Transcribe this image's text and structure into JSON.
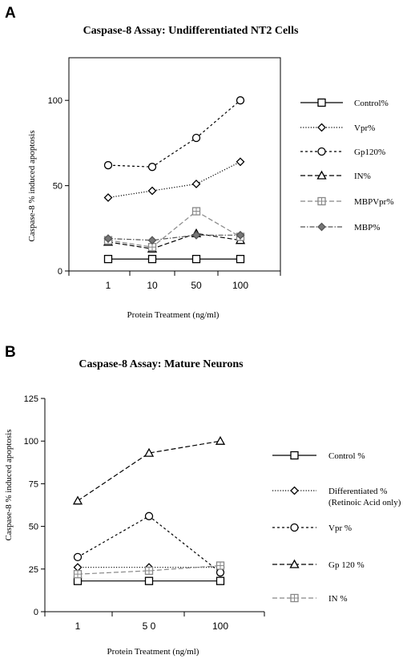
{
  "panels": [
    {
      "letter": "A"
    },
    {
      "letter": "B"
    }
  ],
  "chart_data": [
    {
      "type": "line",
      "title": "Caspase-8 Assay: Undifferentiated NT2 Cells",
      "xlabel": "Protein Treatment (ng/ml)",
      "ylabel": "Caspase-8 % induced apoptosis",
      "categories": [
        "1",
        "10",
        "50",
        "100"
      ],
      "ylim": [
        0,
        125
      ],
      "yticks": [
        "0",
        "50",
        "100"
      ],
      "ytick_values": [
        0,
        50,
        100
      ],
      "grid": false,
      "legend_position": "right",
      "series": [
        {
          "name": "Control%",
          "values": [
            7,
            7,
            7,
            7
          ],
          "marker": "square",
          "dash": "solid",
          "color": "#000000",
          "fill": "#ffffff"
        },
        {
          "name": "Vpr%",
          "values": [
            43,
            47,
            51,
            64
          ],
          "marker": "diamond",
          "dash": "dotted",
          "color": "#000000",
          "fill": "#ffffff"
        },
        {
          "name": "Gp120%",
          "values": [
            62,
            61,
            78,
            100
          ],
          "marker": "circle",
          "dash": "short-dash",
          "color": "#000000",
          "fill": "#ffffff"
        },
        {
          "name": "IN%",
          "values": [
            17,
            13,
            22,
            18
          ],
          "marker": "triangle",
          "dash": "long-dash",
          "color": "#000000",
          "fill": "#ffffff"
        },
        {
          "name": "MBPVpr%",
          "values": [
            18,
            14,
            35,
            20
          ],
          "marker": "square-plus",
          "dash": "long-dash",
          "color": "#888888",
          "fill": "#ffffff"
        },
        {
          "name": "MBP%",
          "values": [
            19,
            18,
            21,
            21
          ],
          "marker": "diamond-filled",
          "dash": "dash-dot",
          "color": "#555555",
          "fill": "#777777"
        }
      ]
    },
    {
      "type": "line",
      "title": "Caspase-8 Assay: Mature Neurons",
      "xlabel": "Protein Treatment (ng/ml)",
      "ylabel": "Caspase-8 % induced apoptosis",
      "categories": [
        "1",
        "5 0",
        "100"
      ],
      "ylim": [
        0,
        125
      ],
      "yticks": [
        "0",
        "25",
        "50",
        "75",
        "100",
        "125"
      ],
      "ytick_values": [
        0,
        25,
        50,
        75,
        100,
        125
      ],
      "grid": false,
      "legend_position": "right",
      "series": [
        {
          "name": "Control %",
          "values": [
            18,
            18,
            18
          ],
          "marker": "square",
          "dash": "solid",
          "color": "#000000",
          "fill": "#ffffff"
        },
        {
          "name": "Differentiated %",
          "subname": "(Retinoic Acid only)",
          "values": [
            26,
            26,
            26
          ],
          "marker": "diamond",
          "dash": "dotted",
          "color": "#000000",
          "fill": "#ffffff"
        },
        {
          "name": "Vpr %",
          "values": [
            32,
            56,
            23
          ],
          "marker": "circle",
          "dash": "short-dash",
          "color": "#000000",
          "fill": "#ffffff"
        },
        {
          "name": "Gp 120 %",
          "values": [
            65,
            93,
            100
          ],
          "marker": "triangle",
          "dash": "long-dash",
          "color": "#000000",
          "fill": "#ffffff"
        },
        {
          "name": "IN %",
          "values": [
            22,
            24,
            27
          ],
          "marker": "square-plus",
          "dash": "long-dash",
          "color": "#888888",
          "fill": "#ffffff"
        }
      ]
    }
  ]
}
